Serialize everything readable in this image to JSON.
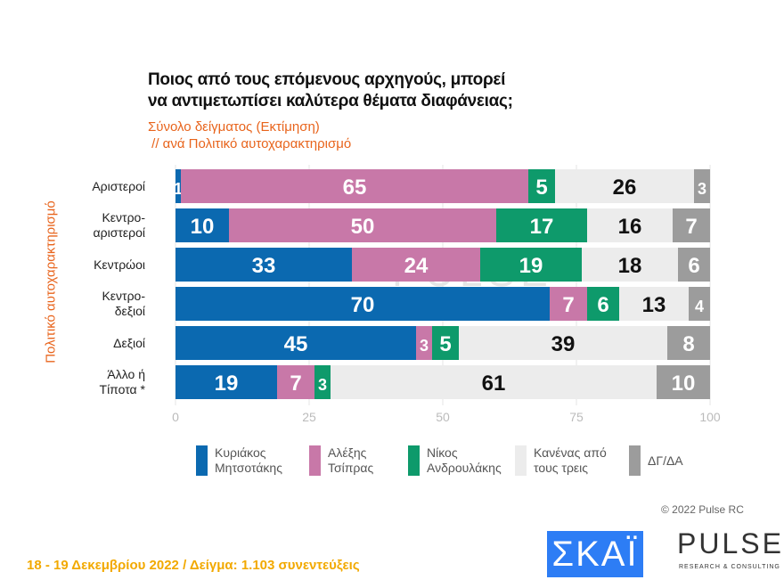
{
  "title_line1": "Ποιος από τους επόμενους αρχηγούς, μπορεί",
  "title_line2": "να αντιμετωπίσει καλύτερα θέματα διαφάνειας;",
  "subtitle1": "Σύνολο δείγματος  (Εκτίμηση)",
  "subtitle2": " // ανά Πολιτικό αυτοχαρακτηρισμό",
  "copyright": "© 2022 Pulse RC",
  "footer": "18 - 19  Δεκεμβρίου  2022  /  Δείγμα:  1.103 συνεντεύξεις",
  "logos": {
    "skai": "ΣΚΑΪ",
    "pulse": "PULSE",
    "pulse_sub": "RESEARCH & CONSULTING"
  },
  "colors": {
    "blue": "#0b69b0",
    "pink": "#c878a8",
    "green": "#0e9a6b",
    "light": "#ececec",
    "gray": "#9c9c9c"
  },
  "chart_data": {
    "type": "bar",
    "orientation": "horizontal",
    "stacked": true,
    "ylabel": "Πολιτικό αυτοχαρακτηρισμό",
    "categories": [
      [
        "Αριστεροί"
      ],
      [
        "Κεντρο-",
        "αριστεροί"
      ],
      [
        "Κεντρώοι"
      ],
      [
        "Κεντρο-",
        "δεξιοί"
      ],
      [
        "Δεξιοί"
      ],
      [
        "Άλλο ή",
        "Τίποτα *"
      ]
    ],
    "xlim": [
      0,
      100
    ],
    "xticks": [
      "0",
      "25",
      "50",
      "75",
      "100"
    ],
    "series": [
      {
        "name": "Κυριάκος Μητσοτάκης",
        "legend": [
          "Κυριάκος",
          "Μητσοτάκης"
        ],
        "color": "#0b69b0",
        "text": "#fff",
        "values": [
          1,
          10,
          33,
          70,
          45,
          19
        ]
      },
      {
        "name": "Αλέξης Τσίπρας",
        "legend": [
          "Αλέξης",
          "Τσίπρας"
        ],
        "color": "#c878a8",
        "text": "#fff",
        "values": [
          65,
          50,
          24,
          7,
          3,
          7
        ]
      },
      {
        "name": "Νίκος Ανδρουλάκης",
        "legend": [
          "Νίκος",
          "Ανδρουλάκης"
        ],
        "color": "#0e9a6b",
        "text": "#fff",
        "values": [
          5,
          17,
          19,
          6,
          5,
          3
        ]
      },
      {
        "name": "Κανένας από τους τρεις",
        "legend": [
          "Κανένας από",
          "τους τρεις"
        ],
        "color": "#ececec",
        "text": "#111",
        "values": [
          26,
          16,
          18,
          13,
          39,
          61
        ]
      },
      {
        "name": "ΔΓ/ΔΑ",
        "legend": [
          "ΔΓ/ΔΑ"
        ],
        "color": "#9c9c9c",
        "text": "#fff",
        "values": [
          3,
          7,
          6,
          4,
          8,
          10
        ]
      }
    ]
  }
}
